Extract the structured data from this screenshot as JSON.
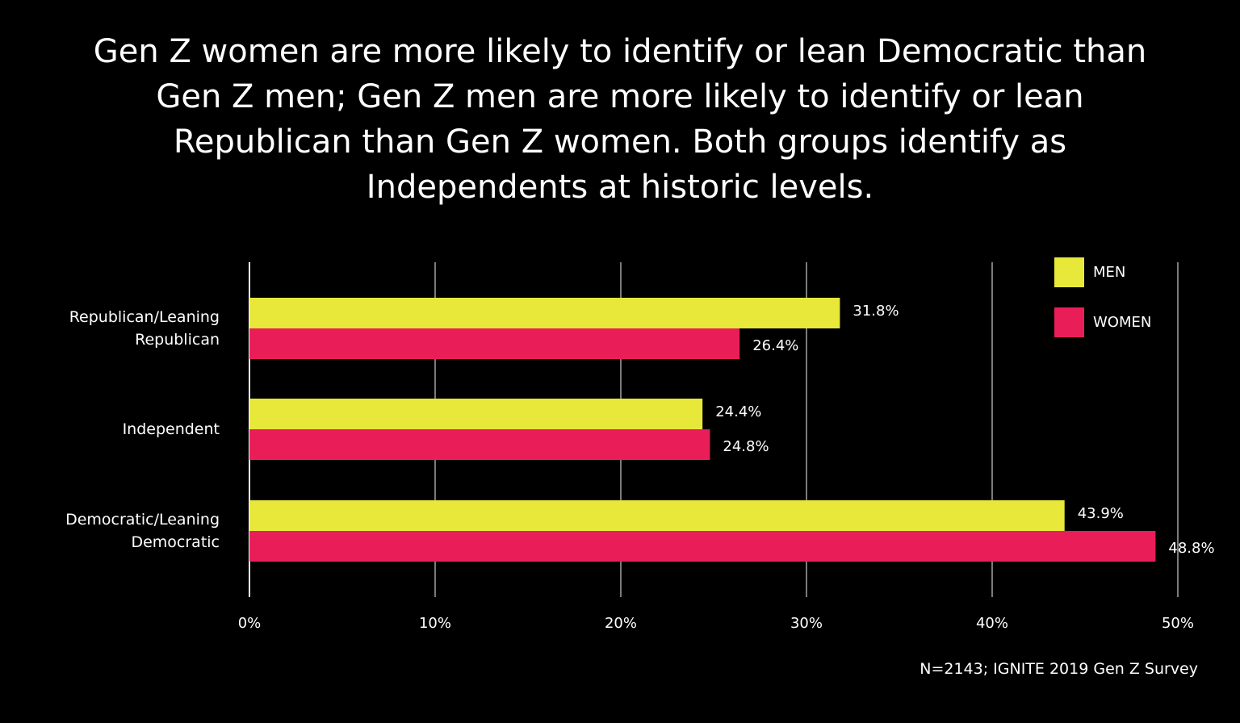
{
  "chart_data": {
    "type": "hbar",
    "title": "Gen Z women are more likely to identify or lean Democratic than Gen Z men; Gen Z men are more likely to identify or lean Republican than Gen Z women. Both groups identify as Independents at historic levels.",
    "source": "N=2143; IGNITE 2019 Gen Z Survey",
    "categories": [
      "Republican/Leaning Republican",
      "Independent",
      "Democratic/Leaning Democratic"
    ],
    "series": [
      {
        "name": "MEN",
        "color": "#e8e83a",
        "values": [
          31.8,
          24.4,
          43.9
        ],
        "value_labels": [
          "31.8%",
          "24.4%",
          "43.9%"
        ]
      },
      {
        "name": "WOMEN",
        "color": "#e91e58",
        "values": [
          26.4,
          24.8,
          48.8
        ],
        "value_labels": [
          "26.4%",
          "24.8%",
          "48.8%"
        ]
      }
    ],
    "xlim": [
      0,
      50
    ],
    "xticks": [
      {
        "value": 0,
        "label": "0%"
      },
      {
        "value": 10,
        "label": "10%"
      },
      {
        "value": 20,
        "label": "20%"
      },
      {
        "value": 30,
        "label": "30%"
      },
      {
        "value": 40,
        "label": "40%"
      },
      {
        "value": 50,
        "label": "50%"
      }
    ],
    "grid": true,
    "legend": "top-right"
  }
}
